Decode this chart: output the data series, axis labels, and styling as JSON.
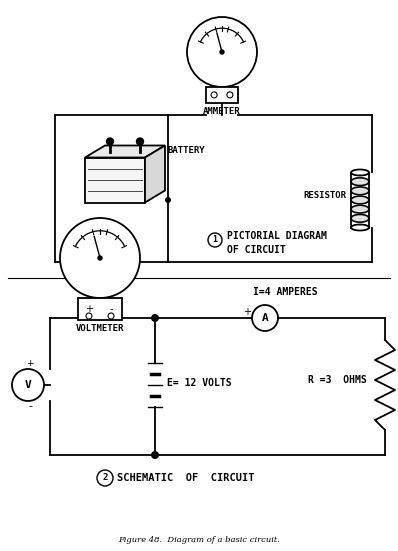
{
  "bg_color": "#ffffff",
  "line_color": "#000000",
  "title_ammeter": "AMMETER",
  "title_battery": "BATTERY",
  "title_resistor": "RESISTOR",
  "title_voltmeter": "VOLTMETER",
  "label1_circle": "1",
  "label1_text": "PICTORIAL DIAGRAM\n   OF CIRCUIT",
  "label2_circle": "2",
  "label2_text": "SCHEMATIC  OF  CIRCUIT",
  "label_amperes": "I=4 AMPERES",
  "label_volts": "E= 12 VOLTS",
  "label_ohms": "R =3  OHMS",
  "figure_caption": "Figure 48.  Diagram of a basic circuit.",
  "ammeter_label": "A",
  "voltmeter_label": "V"
}
